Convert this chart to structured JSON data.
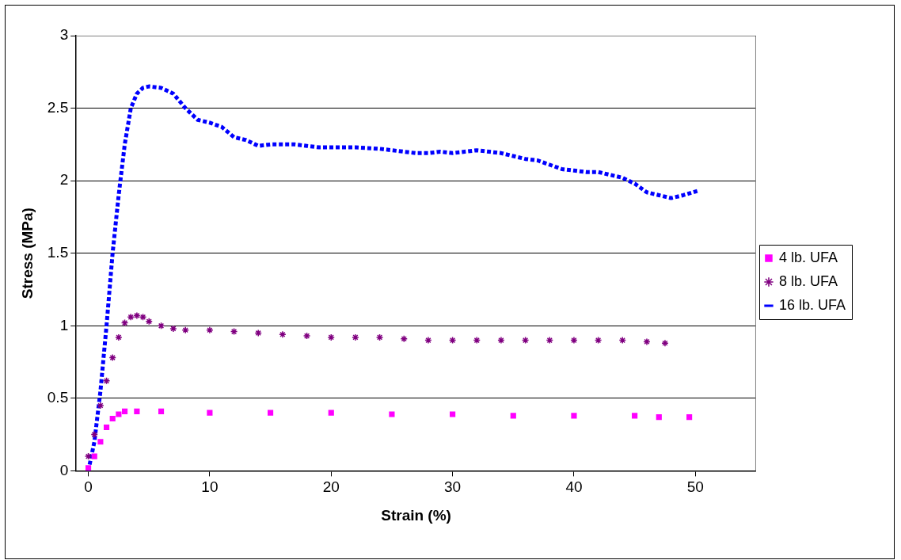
{
  "chart_data": {
    "type": "scatter",
    "xlabel": "Strain (%)",
    "ylabel": "Stress (MPa)",
    "xlim": [
      -1,
      55
    ],
    "xticks": [
      0,
      10,
      20,
      30,
      40,
      50
    ],
    "ylim": [
      0,
      3
    ],
    "yticks": [
      0,
      0.5,
      1,
      1.5,
      2,
      2.5,
      3
    ],
    "grid": "y",
    "legend": "right",
    "series": [
      {
        "name": "4 lb. UFA",
        "color": "#ff00ff",
        "marker": "square",
        "x": [
          0,
          0.5,
          1,
          1.5,
          2,
          2.5,
          3,
          4,
          6,
          10,
          15,
          20,
          25,
          30,
          35,
          40,
          45,
          47,
          49.5
        ],
        "values": [
          0.02,
          0.1,
          0.2,
          0.3,
          0.36,
          0.39,
          0.41,
          0.41,
          0.41,
          0.4,
          0.4,
          0.4,
          0.39,
          0.39,
          0.38,
          0.38,
          0.38,
          0.37,
          0.37
        ]
      },
      {
        "name": "8 lb. UFA",
        "color": "#800080",
        "marker": "cross",
        "x": [
          0,
          0.5,
          1,
          1.5,
          2,
          2.5,
          3,
          3.5,
          4,
          4.5,
          5,
          6,
          7,
          8,
          10,
          12,
          14,
          16,
          18,
          20,
          22,
          24,
          26,
          28,
          30,
          32,
          34,
          36,
          38,
          40,
          42,
          44,
          46,
          47.5
        ],
        "values": [
          0.1,
          0.25,
          0.45,
          0.62,
          0.78,
          0.92,
          1.02,
          1.06,
          1.07,
          1.06,
          1.03,
          1.0,
          0.98,
          0.97,
          0.97,
          0.96,
          0.95,
          0.94,
          0.93,
          0.92,
          0.92,
          0.92,
          0.91,
          0.9,
          0.9,
          0.9,
          0.9,
          0.9,
          0.9,
          0.9,
          0.9,
          0.9,
          0.89,
          0.88
        ]
      },
      {
        "name": "16 lb. UFA",
        "type": "line",
        "color": "#0000ff",
        "marker": "none",
        "line_style": "dashed",
        "x": [
          0,
          0.5,
          1,
          1.5,
          2,
          2.5,
          3,
          3.5,
          4,
          4.5,
          5,
          6,
          7,
          7.5,
          8,
          9,
          10,
          11,
          12,
          13,
          14,
          15,
          16,
          17,
          18,
          19,
          20,
          21,
          22,
          24,
          26,
          27,
          28,
          29,
          30,
          31,
          32,
          33,
          34,
          35,
          36,
          37,
          38,
          39,
          40,
          41,
          42,
          43,
          44,
          45,
          46,
          47,
          48,
          49,
          50.2
        ],
        "values": [
          0,
          0.2,
          0.55,
          1.0,
          1.5,
          1.9,
          2.25,
          2.5,
          2.6,
          2.64,
          2.65,
          2.64,
          2.6,
          2.55,
          2.5,
          2.42,
          2.4,
          2.37,
          2.3,
          2.28,
          2.24,
          2.25,
          2.25,
          2.25,
          2.24,
          2.23,
          2.23,
          2.23,
          2.23,
          2.22,
          2.2,
          2.19,
          2.19,
          2.2,
          2.19,
          2.2,
          2.21,
          2.2,
          2.19,
          2.17,
          2.15,
          2.14,
          2.11,
          2.08,
          2.07,
          2.06,
          2.06,
          2.04,
          2.02,
          1.98,
          1.92,
          1.9,
          1.88,
          1.9,
          1.93
        ]
      }
    ]
  }
}
